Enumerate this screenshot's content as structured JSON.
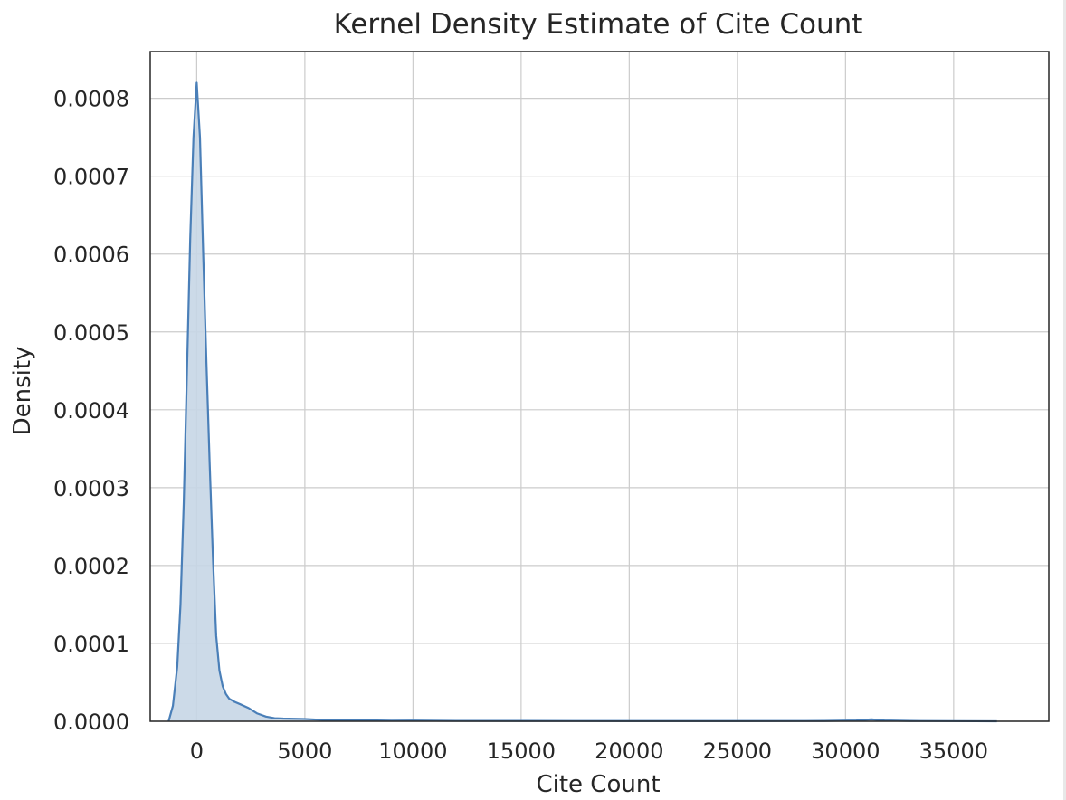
{
  "chart_data": {
    "type": "area",
    "title": "Kernel Density Estimate of Cite Count",
    "xlabel": "Cite Count",
    "ylabel": "Density",
    "xlim": [
      -2150,
      39400
    ],
    "ylim": [
      0,
      0.00086
    ],
    "xticks": [
      0,
      5000,
      10000,
      15000,
      20000,
      25000,
      30000,
      35000
    ],
    "xtick_labels": [
      "0",
      "5000",
      "10000",
      "15000",
      "20000",
      "25000",
      "30000",
      "35000"
    ],
    "yticks": [
      0,
      0.0001,
      0.0002,
      0.0003,
      0.0004,
      0.0005,
      0.0006,
      0.0007,
      0.0008
    ],
    "ytick_labels": [
      "0.0000",
      "0.0001",
      "0.0002",
      "0.0003",
      "0.0004",
      "0.0005",
      "0.0006",
      "0.0007",
      "0.0008"
    ],
    "grid": true,
    "color": "#4a7fb8",
    "fill_color": "#c6d6e6",
    "series": [
      {
        "x": [
          -1300,
          -1100,
          -900,
          -750,
          -600,
          -450,
          -300,
          -150,
          0,
          150,
          300,
          450,
          600,
          750,
          900,
          1050,
          1200,
          1350,
          1500,
          1750,
          2000,
          2400,
          2800,
          3200,
          3600,
          4000,
          5000,
          6000,
          7000,
          8000,
          9000,
          10000,
          12000,
          15000,
          20000,
          25000,
          29000,
          30500,
          31200,
          31800,
          33000,
          35000,
          37000
        ],
        "y": [
          0,
          2e-05,
          7e-05,
          0.00015,
          0.00028,
          0.00045,
          0.00062,
          0.00075,
          0.00082,
          0.00075,
          0.0006,
          0.00046,
          0.00033,
          0.00021,
          0.00011,
          6.5e-05,
          4.5e-05,
          3.5e-05,
          2.9e-05,
          2.5e-05,
          2.2e-05,
          1.7e-05,
          1e-05,
          6e-06,
          4e-06,
          3.5e-06,
          3e-06,
          1.5e-06,
          1e-06,
          1.2e-06,
          8e-07,
          9e-07,
          5e-07,
          4e-07,
          3e-07,
          3e-07,
          4e-07,
          1e-06,
          2.5e-06,
          1e-06,
          4e-07,
          2e-07,
          0
        ]
      }
    ]
  }
}
